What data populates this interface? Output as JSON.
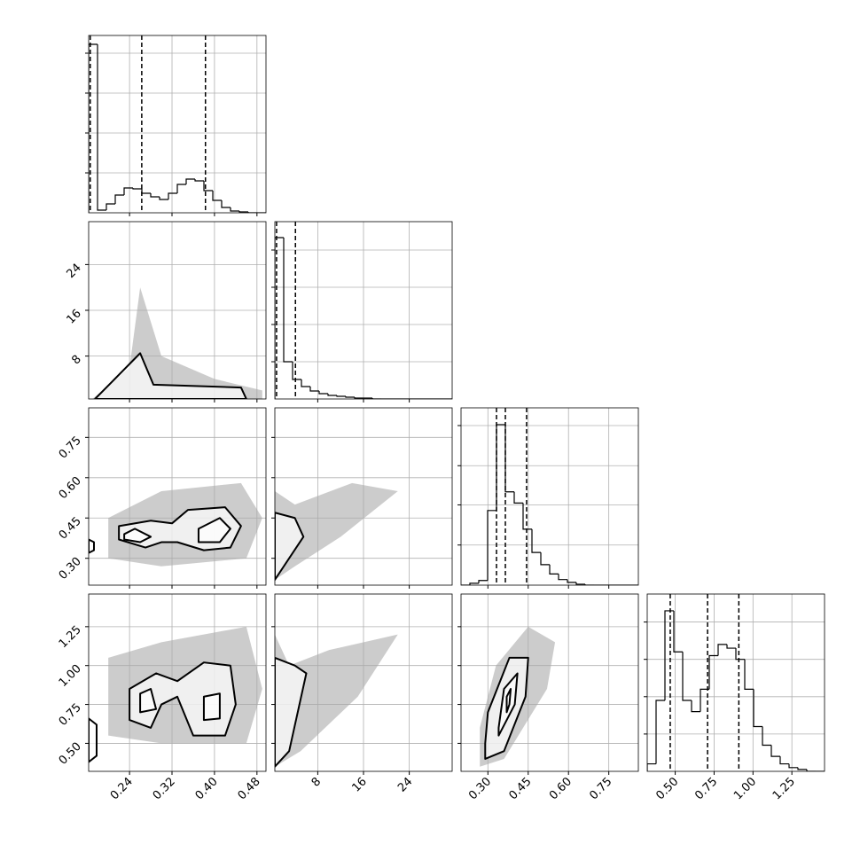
{
  "chart_data": {
    "type": "corner",
    "color": "#000000",
    "cloud_color": "#aaaaaa",
    "grid": true,
    "variables": [
      {
        "lim": [
          0.163,
          0.497
        ],
        "ticks": [
          0.24,
          0.32,
          {
            "value": 0.4,
            "label": "0.40"
          },
          0.48
        ],
        "bins": [
          0.163,
          0.1797,
          0.1964,
          0.2131,
          0.2298,
          0.2465,
          0.2632,
          0.2799,
          0.2966,
          0.3133,
          0.33,
          0.3467,
          0.3634,
          0.3801,
          0.3968,
          0.4135,
          0.4302,
          0.4469,
          0.4636,
          0.4803,
          0.497
        ],
        "counts": [
          190,
          3,
          10,
          20,
          28,
          27,
          22,
          18,
          15,
          22,
          32,
          38,
          36,
          25,
          14,
          6,
          2,
          1,
          0,
          0
        ],
        "hist_ylim": [
          0,
          200
        ],
        "hist_yticks": [
          45,
          90,
          135,
          180
        ],
        "quantiles": [
          0.166,
          0.263,
          0.383
        ]
      },
      {
        "lim": [
          0.5,
          31.5
        ],
        "ticks": [
          8,
          16,
          24
        ],
        "bins": [
          0.5,
          2.05,
          3.6,
          5.15,
          6.7,
          8.25,
          9.8,
          11.35,
          12.9,
          14.45,
          16,
          17.55,
          19.1,
          20.65,
          22.2,
          23.75,
          25.3,
          26.85,
          28.4,
          29.95,
          31.5
        ],
        "counts": [
          182,
          42,
          22,
          14,
          9,
          6,
          4,
          3,
          2,
          1,
          1,
          0,
          0,
          0,
          0,
          0,
          0,
          0,
          0,
          0
        ],
        "hist_ylim": [
          0,
          200
        ],
        "hist_yticks": [
          42,
          84,
          126,
          168
        ],
        "quantiles": [
          0.8,
          4.1
        ]
      },
      {
        "lim": [
          0.2,
          0.86
        ],
        "ticks": [
          {
            "value": 0.3,
            "label": "0.30"
          },
          0.45,
          {
            "value": 0.6,
            "label": "0.60"
          },
          0.75
        ],
        "bins": [
          0.2,
          0.233,
          0.266,
          0.299,
          0.332,
          0.365,
          0.398,
          0.431,
          0.464,
          0.497,
          0.53,
          0.563,
          0.596,
          0.629,
          0.662,
          0.695,
          0.728,
          0.761,
          0.794,
          0.827,
          0.86
        ],
        "counts": [
          0,
          2,
          5,
          80,
          172,
          100,
          88,
          60,
          35,
          22,
          12,
          6,
          3,
          1,
          0,
          0,
          0,
          0,
          0,
          0
        ],
        "hist_ylim": [
          0,
          190
        ],
        "hist_yticks": [
          43,
          86,
          128,
          171
        ],
        "quantiles": [
          0.332,
          0.365,
          0.444
        ]
      },
      {
        "lim": [
          0.32,
          1.46
        ],
        "ticks": [
          {
            "value": 0.5,
            "label": "0.50"
          },
          0.75,
          {
            "value": 1.0,
            "label": "1.00"
          },
          1.25
        ],
        "bins": [
          0.32,
          0.377,
          0.434,
          0.491,
          0.548,
          0.605,
          0.662,
          0.719,
          0.776,
          0.833,
          0.89,
          0.947,
          1.004,
          1.061,
          1.118,
          1.175,
          1.232,
          1.289,
          1.346,
          1.403,
          1.46
        ],
        "counts": [
          4,
          38,
          86,
          64,
          38,
          32,
          44,
          62,
          68,
          66,
          60,
          44,
          24,
          14,
          8,
          4,
          2,
          1,
          0,
          0
        ],
        "hist_ylim": [
          0,
          95
        ],
        "hist_yticks": [
          20,
          40,
          60,
          80
        ],
        "quantiles": [
          0.468,
          0.708,
          0.909
        ]
      }
    ],
    "panels": [
      {
        "row": 1,
        "col": 0,
        "cloud": {
          "x": [
            0.17,
            0.24,
            0.26,
            0.3,
            0.4,
            0.49,
            0.49,
            0.17
          ],
          "y": [
            0.5,
            6,
            20,
            8,
            4,
            2,
            0.5,
            0.5
          ]
        },
        "contours": [
          {
            "x": [
              0.175,
              0.26,
              0.285,
              0.45,
              0.46,
              0.175
            ],
            "y": [
              0.5,
              8.5,
              3,
              2.5,
              0.5,
              0.5
            ]
          }
        ]
      },
      {
        "row": 2,
        "col": 0,
        "cloud": {
          "x": [
            0.2,
            0.3,
            0.46,
            0.49,
            0.45,
            0.3,
            0.2
          ],
          "y": [
            0.3,
            0.27,
            0.3,
            0.45,
            0.58,
            0.55,
            0.45
          ]
        },
        "contours": [
          {
            "x": [
              0.22,
              0.27,
              0.3,
              0.33,
              0.38,
              0.43,
              0.45,
              0.42,
              0.35,
              0.32,
              0.28,
              0.22
            ],
            "y": [
              0.37,
              0.34,
              0.36,
              0.36,
              0.33,
              0.34,
              0.42,
              0.49,
              0.48,
              0.43,
              0.44,
              0.42
            ]
          },
          {
            "x": [
              0.23,
              0.26,
              0.28,
              0.25,
              0.23
            ],
            "y": [
              0.37,
              0.36,
              0.38,
              0.41,
              0.39
            ]
          },
          {
            "x": [
              0.37,
              0.41,
              0.43,
              0.41,
              0.37
            ],
            "y": [
              0.36,
              0.36,
              0.41,
              0.45,
              0.41
            ]
          },
          {
            "x": [
              0.163,
              0.173,
              0.173,
              0.163
            ],
            "y": [
              0.32,
              0.33,
              0.36,
              0.37
            ]
          }
        ]
      },
      {
        "row": 3,
        "col": 0,
        "cloud": {
          "x": [
            0.2,
            0.3,
            0.46,
            0.49,
            0.46,
            0.3,
            0.2
          ],
          "y": [
            0.55,
            0.5,
            0.5,
            0.85,
            1.25,
            1.15,
            1.05
          ]
        },
        "contours": [
          {
            "x": [
              0.24,
              0.28,
              0.3,
              0.33,
              0.36,
              0.42,
              0.44,
              0.43,
              0.38,
              0.33,
              0.29,
              0.24
            ],
            "y": [
              0.65,
              0.6,
              0.75,
              0.8,
              0.55,
              0.55,
              0.75,
              1.0,
              1.02,
              0.9,
              0.95,
              0.85
            ]
          },
          {
            "x": [
              0.26,
              0.29,
              0.28,
              0.26
            ],
            "y": [
              0.7,
              0.72,
              0.85,
              0.82
            ]
          },
          {
            "x": [
              0.38,
              0.41,
              0.41,
              0.38
            ],
            "y": [
              0.65,
              0.66,
              0.82,
              0.8
            ]
          },
          {
            "x": [
              0.163,
              0.178,
              0.178,
              0.163
            ],
            "y": [
              0.38,
              0.42,
              0.62,
              0.66
            ]
          }
        ]
      },
      {
        "row": 2,
        "col": 1,
        "cloud": {
          "x": [
            0.5,
            4,
            12,
            22,
            14,
            4,
            0.5
          ],
          "y": [
            0.22,
            0.27,
            0.38,
            0.55,
            0.58,
            0.5,
            0.55
          ]
        },
        "contours": [
          {
            "x": [
              0.5,
              3,
              5.5,
              4,
              0.5
            ],
            "y": [
              0.22,
              0.3,
              0.38,
              0.45,
              0.47
            ]
          }
        ]
      },
      {
        "row": 3,
        "col": 1,
        "cloud": {
          "x": [
            0.5,
            5,
            15,
            22,
            10,
            3,
            0.5
          ],
          "y": [
            0.35,
            0.45,
            0.8,
            1.2,
            1.1,
            1.0,
            1.2
          ]
        },
        "contours": [
          {
            "x": [
              0.5,
              3,
              6,
              4,
              0.5
            ],
            "y": [
              0.35,
              0.45,
              0.95,
              1.0,
              1.05
            ]
          }
        ]
      },
      {
        "row": 3,
        "col": 2,
        "cloud": {
          "x": [
            0.27,
            0.36,
            0.52,
            0.55,
            0.45,
            0.33,
            0.27
          ],
          "y": [
            0.35,
            0.4,
            0.85,
            1.15,
            1.25,
            1.0,
            0.6
          ]
        },
        "contours": [
          {
            "x": [
              0.29,
              0.36,
              0.44,
              0.45,
              0.38,
              0.3,
              0.29
            ],
            "y": [
              0.4,
              0.45,
              0.8,
              1.05,
              1.05,
              0.7,
              0.5
            ]
          },
          {
            "x": [
              0.34,
              0.4,
              0.41,
              0.36,
              0.34
            ],
            "y": [
              0.55,
              0.75,
              0.95,
              0.85,
              0.6
            ]
          },
          {
            "x": [
              0.37,
              0.38,
              0.385,
              0.37
            ],
            "y": [
              0.7,
              0.75,
              0.85,
              0.8
            ]
          }
        ]
      }
    ]
  }
}
